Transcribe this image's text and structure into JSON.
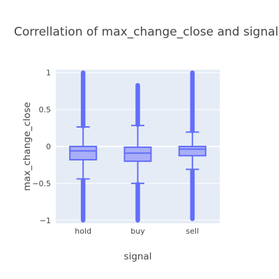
{
  "chart_data": {
    "type": "box",
    "title": "Correllation of max_change_close and signal",
    "xlabel": "signal",
    "ylabel": "max_change_close",
    "categories": [
      "hold",
      "buy",
      "sell"
    ],
    "ylim": [
      -1.04,
      1.04
    ],
    "yticks": [
      1,
      0.5,
      0,
      -0.5,
      -1
    ],
    "ytick_labels": [
      "1",
      "0.5",
      "0",
      "−0.5",
      "−1"
    ],
    "grid": true,
    "colors": {
      "plot_bg": "#e5ecf6",
      "grid": "#ffffff",
      "box_fill": "#a9aef8",
      "box_line": "#636efa",
      "text": "#444444"
    },
    "boxes": [
      {
        "name": "hold",
        "min": -0.44,
        "q1": -0.18,
        "median": -0.06,
        "q3": 0.0,
        "max": 0.265,
        "outliers_low": [
          -1.0,
          -0.46
        ],
        "outliers_high": [
          0.275,
          1.0
        ]
      },
      {
        "name": "buy",
        "min": -0.5,
        "q1": -0.2,
        "median": -0.09,
        "q3": -0.01,
        "max": 0.285,
        "outliers_low": [
          -1.0,
          -0.51
        ],
        "outliers_high": [
          0.295,
          0.83
        ]
      },
      {
        "name": "sell",
        "min": -0.31,
        "q1": -0.125,
        "median": -0.035,
        "q3": 0.0,
        "max": 0.195,
        "outliers_low": [
          -0.98,
          -0.33
        ],
        "outliers_high": [
          0.21,
          1.0
        ]
      }
    ]
  }
}
